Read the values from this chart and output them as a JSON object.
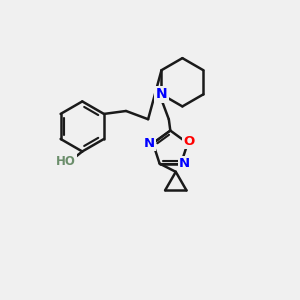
{
  "background_color": "#f0f0f0",
  "bond_color": "#1a1a1a",
  "bond_width": 1.8,
  "N_color": "#0000ff",
  "O_color": "#ff0000",
  "HO_color": "#6b8e6b",
  "figsize": [
    3.0,
    3.0
  ],
  "dpi": 100,
  "xlim": [
    0,
    10
  ],
  "ylim": [
    0,
    10
  ]
}
